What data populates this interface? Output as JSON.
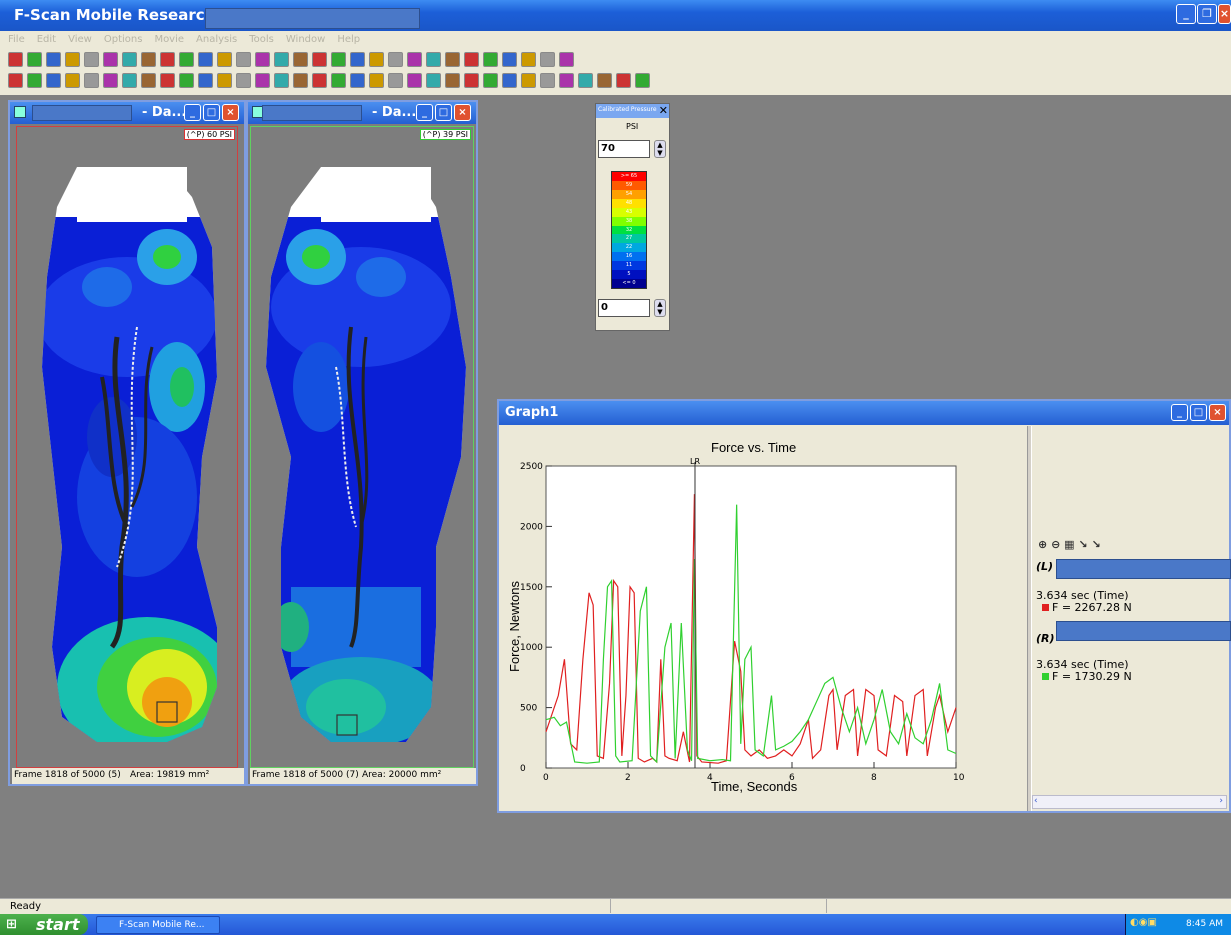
{
  "app": {
    "title": "F-Scan Mobile Research -"
  },
  "menu": [
    "File",
    "Edit",
    "View",
    "Options",
    "Movie",
    "Analysis",
    "Tools",
    "Window",
    "Help"
  ],
  "left_pane": {
    "title": "- Da...",
    "badge": "(^P) 60 PSI",
    "frame": "Frame 1818 of 5000 (5)",
    "area": "Area: 19819 mm²"
  },
  "right_pane": {
    "title": "- Da...",
    "badge": "(^P) 39 PSI",
    "frame": "Frame 1818 of 5000 (7)",
    "area": "Area: 20000 mm²"
  },
  "palette": {
    "title": "Calibrated Pressure",
    "unit": "PSI",
    "max": "70",
    "min": "0",
    "legend": [
      ">= 65",
      "59",
      "54",
      "48",
      "43",
      "38",
      "32",
      "27",
      "22",
      "16",
      "11",
      "5",
      "<= 0"
    ],
    "colors": [
      "#ff0000",
      "#ff5a00",
      "#ffa000",
      "#ffe000",
      "#d8ff00",
      "#80ff00",
      "#00e040",
      "#00c8a0",
      "#00a8e0",
      "#0070f0",
      "#0038e0",
      "#0010c0",
      "#000090"
    ]
  },
  "graph": {
    "window_title": "Graph1",
    "title": "Force vs. Time",
    "xlabel": "Time, Seconds",
    "ylabel": "Force, Newtons",
    "marker": "LR",
    "left_label": "(L)",
    "left_time": "3.634 sec (Time)",
    "left_force": "F = 2267.28 N",
    "right_label": "(R)",
    "right_time": "3.634 sec (Time)",
    "right_force": "F = 1730.29 N",
    "colors": {
      "left": "#e02020",
      "right": "#30d030"
    }
  },
  "chart_data": {
    "type": "line",
    "title": "Force vs. Time",
    "xlabel": "Time, Seconds",
    "ylabel": "Force, Newtons",
    "xlim": [
      0,
      10
    ],
    "ylim": [
      0,
      2500
    ],
    "xticks": [
      0,
      2,
      4,
      6,
      8,
      10
    ],
    "yticks": [
      0,
      500,
      1000,
      1500,
      2000,
      2500
    ],
    "cursor_x": 3.634,
    "series": [
      {
        "color": "#e02020",
        "points": [
          [
            0,
            300
          ],
          [
            0.3,
            600
          ],
          [
            0.45,
            900
          ],
          [
            0.6,
            200
          ],
          [
            0.75,
            150
          ],
          [
            0.9,
            900
          ],
          [
            1.05,
            1450
          ],
          [
            1.15,
            1350
          ],
          [
            1.25,
            100
          ],
          [
            1.4,
            80
          ],
          [
            1.55,
            700
          ],
          [
            1.65,
            1550
          ],
          [
            1.75,
            1500
          ],
          [
            1.85,
            100
          ],
          [
            1.95,
            600
          ],
          [
            2.05,
            1500
          ],
          [
            2.15,
            1450
          ],
          [
            2.25,
            80
          ],
          [
            2.4,
            50
          ],
          [
            2.6,
            80
          ],
          [
            2.7,
            50
          ],
          [
            2.8,
            900
          ],
          [
            2.9,
            100
          ],
          [
            3.0,
            80
          ],
          [
            3.2,
            60
          ],
          [
            3.35,
            300
          ],
          [
            3.5,
            50
          ],
          [
            3.62,
            2267
          ],
          [
            3.68,
            100
          ],
          [
            3.8,
            50
          ],
          [
            4.2,
            40
          ],
          [
            4.4,
            60
          ],
          [
            4.6,
            1050
          ],
          [
            4.75,
            800
          ],
          [
            4.85,
            150
          ],
          [
            5.0,
            100
          ],
          [
            5.2,
            150
          ],
          [
            5.4,
            80
          ],
          [
            5.6,
            100
          ],
          [
            5.8,
            150
          ],
          [
            6.0,
            100
          ],
          [
            6.2,
            200
          ],
          [
            6.4,
            400
          ],
          [
            6.5,
            80
          ],
          [
            6.7,
            150
          ],
          [
            6.9,
            600
          ],
          [
            7.0,
            650
          ],
          [
            7.1,
            150
          ],
          [
            7.3,
            600
          ],
          [
            7.5,
            650
          ],
          [
            7.6,
            100
          ],
          [
            7.8,
            650
          ],
          [
            8.0,
            600
          ],
          [
            8.1,
            150
          ],
          [
            8.3,
            100
          ],
          [
            8.5,
            600
          ],
          [
            8.7,
            550
          ],
          [
            8.8,
            100
          ],
          [
            9.0,
            600
          ],
          [
            9.2,
            650
          ],
          [
            9.3,
            100
          ],
          [
            9.5,
            500
          ],
          [
            9.6,
            600
          ],
          [
            9.8,
            300
          ],
          [
            10,
            500
          ]
        ]
      },
      {
        "color": "#30d030",
        "points": [
          [
            0,
            400
          ],
          [
            0.2,
            420
          ],
          [
            0.35,
            350
          ],
          [
            0.5,
            380
          ],
          [
            0.7,
            50
          ],
          [
            1.0,
            40
          ],
          [
            1.3,
            50
          ],
          [
            1.4,
            900
          ],
          [
            1.5,
            1500
          ],
          [
            1.6,
            1550
          ],
          [
            1.7,
            100
          ],
          [
            1.8,
            50
          ],
          [
            2.1,
            60
          ],
          [
            2.3,
            1300
          ],
          [
            2.45,
            1500
          ],
          [
            2.55,
            100
          ],
          [
            2.7,
            50
          ],
          [
            2.9,
            1000
          ],
          [
            3.05,
            1200
          ],
          [
            3.15,
            80
          ],
          [
            3.3,
            1200
          ],
          [
            3.45,
            150
          ],
          [
            3.55,
            60
          ],
          [
            3.62,
            1730
          ],
          [
            3.7,
            80
          ],
          [
            4.0,
            60
          ],
          [
            4.3,
            70
          ],
          [
            4.5,
            60
          ],
          [
            4.65,
            2180
          ],
          [
            4.75,
            200
          ],
          [
            4.85,
            900
          ],
          [
            5.0,
            1000
          ],
          [
            5.1,
            150
          ],
          [
            5.3,
            100
          ],
          [
            5.5,
            600
          ],
          [
            5.6,
            150
          ],
          [
            5.8,
            180
          ],
          [
            6.0,
            220
          ],
          [
            6.2,
            300
          ],
          [
            6.4,
            400
          ],
          [
            6.6,
            550
          ],
          [
            6.8,
            700
          ],
          [
            7.0,
            750
          ],
          [
            7.2,
            500
          ],
          [
            7.4,
            300
          ],
          [
            7.6,
            500
          ],
          [
            7.8,
            200
          ],
          [
            8.0,
            400
          ],
          [
            8.2,
            650
          ],
          [
            8.4,
            300
          ],
          [
            8.6,
            200
          ],
          [
            8.8,
            450
          ],
          [
            9.0,
            250
          ],
          [
            9.2,
            200
          ],
          [
            9.4,
            400
          ],
          [
            9.6,
            700
          ],
          [
            9.8,
            150
          ],
          [
            10,
            120
          ]
        ]
      }
    ]
  },
  "statusbar": {
    "text": "Ready"
  },
  "taskbar": {
    "start": "start",
    "task": "F-Scan Mobile Re...",
    "clock": "8:45 AM"
  }
}
